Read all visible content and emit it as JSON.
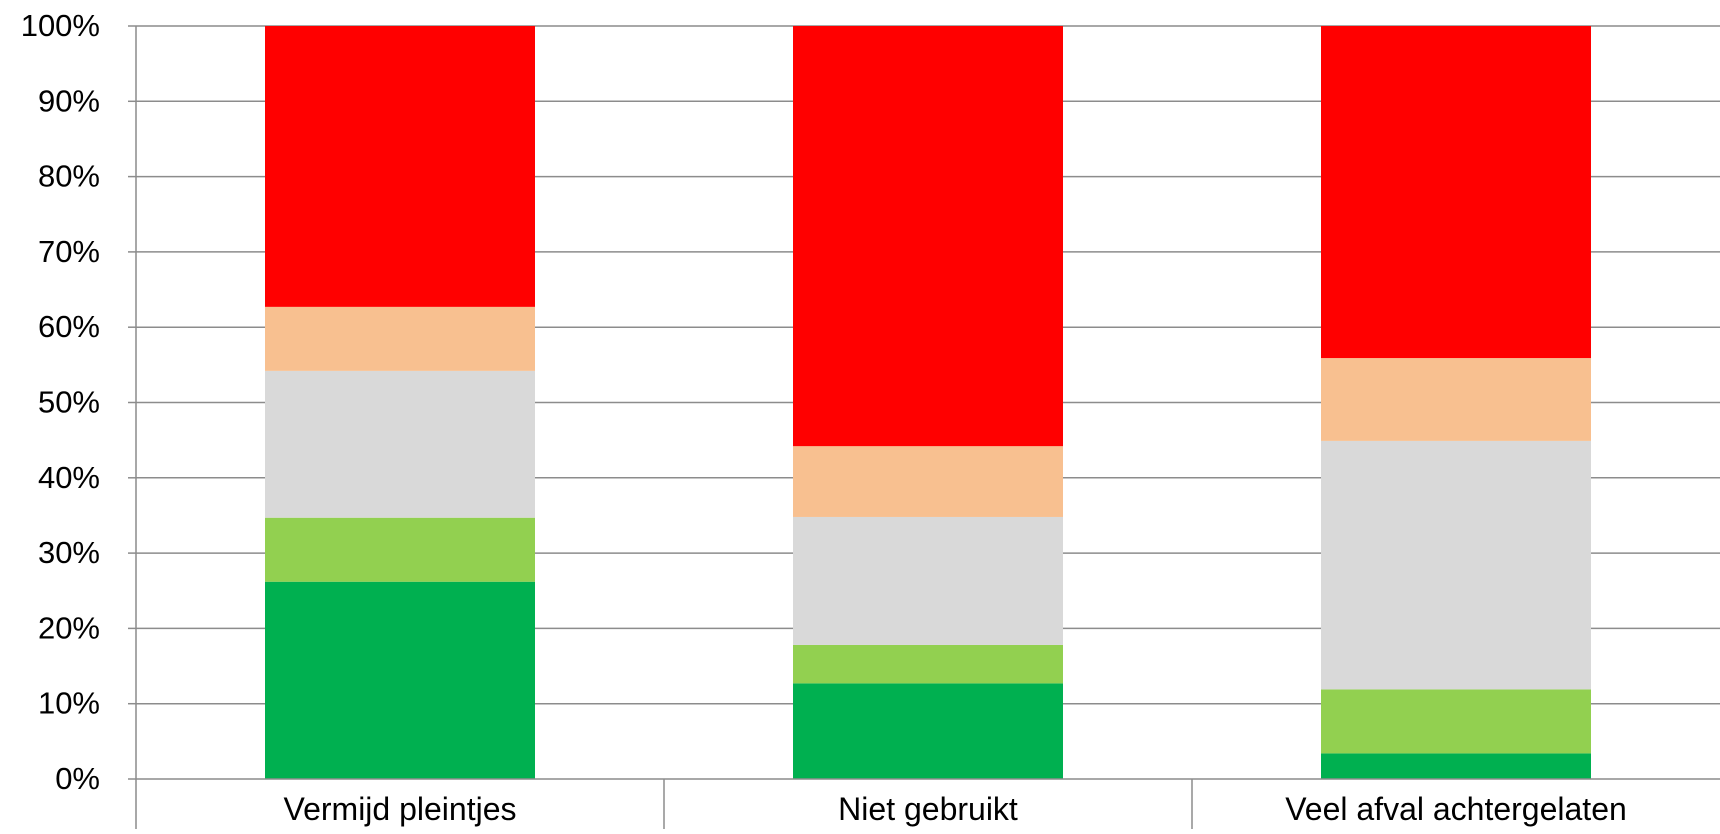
{
  "chart_data": {
    "type": "bar",
    "stacked": true,
    "categories": [
      "Vermijd pleintjes",
      "Niet gebruikt",
      "Veel afval achtergelaten"
    ],
    "series": [
      {
        "color": "#00b050",
        "values": [
          26.2,
          12.7,
          3.4
        ]
      },
      {
        "color": "#92d050",
        "values": [
          8.5,
          5.1,
          8.5
        ]
      },
      {
        "color": "#d9d9d9",
        "values": [
          19.5,
          17.0,
          33.0
        ]
      },
      {
        "color": "#f8c090",
        "values": [
          8.5,
          9.4,
          11.0
        ]
      },
      {
        "color": "#ff0000",
        "values": [
          37.3,
          55.8,
          44.1
        ]
      }
    ],
    "ylim": [
      0,
      100
    ],
    "yticks": [
      "0%",
      "10%",
      "20%",
      "30%",
      "40%",
      "50%",
      "60%",
      "70%",
      "80%",
      "90%",
      "100%"
    ],
    "grid": true,
    "legend": "none"
  }
}
